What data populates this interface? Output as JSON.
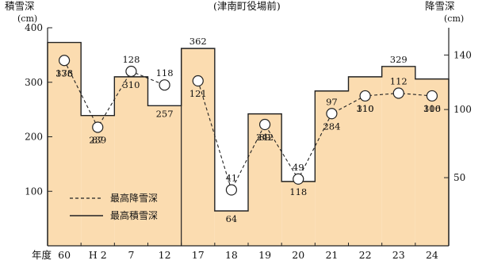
{
  "chart_data": {
    "type": "bar",
    "subtitle": "(津南町役場前)",
    "left_axis": {
      "title": "積雪深",
      "unit": "(cm)",
      "ylim": [
        0,
        400
      ],
      "ticks": [
        100,
        200,
        300,
        400
      ]
    },
    "right_axis": {
      "title": "降雪深",
      "unit": "(cm)",
      "ylim": [
        0,
        160
      ],
      "ticks": [
        50,
        100,
        140
      ]
    },
    "xlabel": "年度",
    "categories": [
      "60",
      "H 2",
      "7",
      "12",
      "17",
      "18",
      "19",
      "20",
      "21",
      "22",
      "23",
      "24"
    ],
    "series": [
      {
        "name": "最高積雪深",
        "kind": "step-bar",
        "axis": "left",
        "fill": "#fbdcb0",
        "values": [
          373,
          239,
          310,
          257,
          362,
          64,
          242,
          118,
          284,
          310,
          329,
          306
        ]
      },
      {
        "name": "最高降雪深",
        "kind": "line-dashed-markers",
        "axis": "right",
        "values": [
          136,
          87,
          128,
          118,
          121,
          41,
          89,
          49,
          97,
          110,
          112,
          110
        ]
      }
    ],
    "legend": {
      "position": "bottom-left",
      "entries": [
        "最高降雪深",
        "最高積雪深"
      ]
    },
    "grid": false
  }
}
